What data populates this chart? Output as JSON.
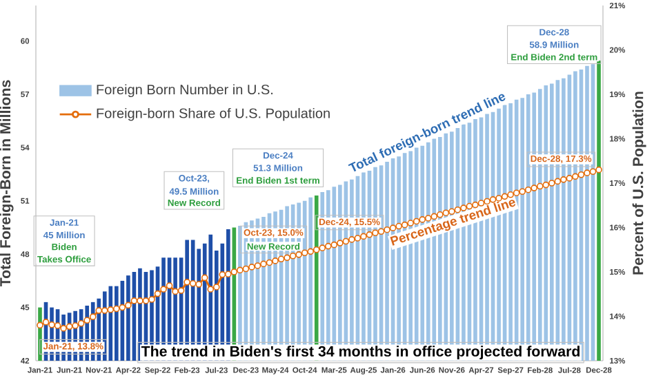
{
  "chart_data": {
    "type": "bar",
    "ylabel": "Total Foreign-Born in Millions",
    "y2label": "Percent of U.S. Population",
    "categories": [
      "Jan-21",
      null,
      null,
      null,
      null,
      "Jun-21",
      null,
      null,
      null,
      null,
      "Nov-21",
      null,
      null,
      null,
      null,
      "Apr-22",
      null,
      null,
      null,
      null,
      "Sep-22",
      null,
      null,
      null,
      null,
      "Feb-23",
      null,
      null,
      null,
      null,
      "Jul-23",
      null,
      null,
      null,
      null,
      "Dec-23",
      null,
      null,
      null,
      null,
      "May-24",
      null,
      null,
      null,
      null,
      "Oct-24",
      null,
      null,
      null,
      null,
      "Mar-25",
      null,
      null,
      null,
      null,
      "Aug-25",
      null,
      null,
      null,
      null,
      "Jan-26",
      null,
      null,
      null,
      null,
      "Jun-26",
      null,
      null,
      null,
      null,
      "Nov-26",
      null,
      null,
      null,
      null,
      "Apr-27",
      null,
      null,
      null,
      null,
      "Sep-27",
      null,
      null,
      null,
      null,
      "Feb-28",
      null,
      null,
      null,
      null,
      "Jul-28",
      null,
      null,
      null,
      null,
      "Dec-28"
    ],
    "series": [
      {
        "name": "Foreign Born Number in U.S.",
        "color": "#9dc3e6",
        "colors": [
          "#3aa845",
          "#1f4fa8",
          "#1f4fa8",
          "#1f4fa8",
          "#1f4fa8",
          "#1f4fa8",
          "#1f4fa8",
          "#1f4fa8",
          "#1f4fa8",
          "#1f4fa8",
          "#1f4fa8",
          "#1f4fa8",
          "#1f4fa8",
          "#1f4fa8",
          "#1f4fa8",
          "#1f4fa8",
          "#1f4fa8",
          "#1f4fa8",
          "#1f4fa8",
          "#1f4fa8",
          "#1f4fa8",
          "#1f4fa8",
          "#1f4fa8",
          "#1f4fa8",
          "#1f4fa8",
          "#1f4fa8",
          "#1f4fa8",
          "#1f4fa8",
          "#1f4fa8",
          "#1f4fa8",
          "#1f4fa8",
          "#1f4fa8",
          "#1f4fa8",
          "#3aa845",
          "#9dc3e6",
          "#9dc3e6",
          "#9dc3e6",
          "#9dc3e6",
          "#9dc3e6",
          "#9dc3e6",
          "#9dc3e6",
          "#9dc3e6",
          "#9dc3e6",
          "#9dc3e6",
          "#9dc3e6",
          "#9dc3e6",
          "#9dc3e6",
          "#3aa845",
          "#9dc3e6",
          "#9dc3e6",
          "#9dc3e6",
          "#9dc3e6",
          "#9dc3e6",
          "#9dc3e6",
          "#9dc3e6",
          "#9dc3e6",
          "#9dc3e6",
          "#9dc3e6",
          "#9dc3e6",
          "#9dc3e6",
          "#9dc3e6",
          "#9dc3e6",
          "#9dc3e6",
          "#9dc3e6",
          "#9dc3e6",
          "#9dc3e6",
          "#9dc3e6",
          "#9dc3e6",
          "#9dc3e6",
          "#9dc3e6",
          "#9dc3e6",
          "#9dc3e6",
          "#9dc3e6",
          "#9dc3e6",
          "#9dc3e6",
          "#9dc3e6",
          "#9dc3e6",
          "#9dc3e6",
          "#9dc3e6",
          "#9dc3e6",
          "#9dc3e6",
          "#9dc3e6",
          "#9dc3e6",
          "#9dc3e6",
          "#9dc3e6",
          "#9dc3e6",
          "#9dc3e6",
          "#9dc3e6",
          "#9dc3e6",
          "#9dc3e6",
          "#9dc3e6",
          "#9dc3e6",
          "#9dc3e6",
          "#9dc3e6",
          "#9dc3e6",
          "#3aa845"
        ],
        "values": [
          45.0,
          45.3,
          45.0,
          44.9,
          44.6,
          44.7,
          44.8,
          44.9,
          45.1,
          45.3,
          45.5,
          45.9,
          46.2,
          46.2,
          46.5,
          46.8,
          47.0,
          47.2,
          47.0,
          47.1,
          47.3,
          47.8,
          47.8,
          47.8,
          47.8,
          48.8,
          48.8,
          48.3,
          48.6,
          49.1,
          48.2,
          48.6,
          49.4,
          49.5,
          49.6,
          49.8,
          49.9,
          50.0,
          50.1,
          50.3,
          50.4,
          50.5,
          50.7,
          50.8,
          50.9,
          51.0,
          51.2,
          51.3,
          51.5,
          51.6,
          51.8,
          51.9,
          52.1,
          52.2,
          52.4,
          52.6,
          52.7,
          52.9,
          53.0,
          53.2,
          53.4,
          53.5,
          53.7,
          53.8,
          54.0,
          54.1,
          54.3,
          54.5,
          54.6,
          54.8,
          54.9,
          55.1,
          55.3,
          55.4,
          55.6,
          55.7,
          55.9,
          56.0,
          56.2,
          56.4,
          56.5,
          56.7,
          56.8,
          57.0,
          57.1,
          57.3,
          57.5,
          57.6,
          57.8,
          57.9,
          58.1,
          58.3,
          58.4,
          58.6,
          58.7,
          58.9
        ]
      },
      {
        "name": "Foreign-born Share of U.S. Population",
        "type": "line",
        "axis": "y2",
        "color": "#e46c0a",
        "values": [
          13.8,
          13.87,
          13.81,
          13.79,
          13.73,
          13.77,
          13.79,
          13.84,
          13.91,
          13.99,
          14.13,
          14.13,
          14.15,
          14.17,
          14.2,
          14.25,
          14.35,
          14.35,
          14.35,
          14.38,
          14.51,
          14.61,
          14.69,
          14.56,
          14.58,
          14.77,
          14.74,
          14.72,
          14.87,
          14.61,
          14.66,
          14.94,
          14.95,
          15.0,
          15.04,
          15.07,
          15.11,
          15.14,
          15.18,
          15.21,
          15.25,
          15.29,
          15.32,
          15.36,
          15.39,
          15.43,
          15.46,
          15.5,
          15.54,
          15.58,
          15.61,
          15.65,
          15.69,
          15.73,
          15.76,
          15.8,
          15.84,
          15.88,
          15.91,
          15.95,
          15.99,
          16.03,
          16.06,
          16.1,
          16.14,
          16.18,
          16.21,
          16.25,
          16.29,
          16.33,
          16.36,
          16.4,
          16.44,
          16.48,
          16.51,
          16.55,
          16.59,
          16.63,
          16.66,
          16.7,
          16.74,
          16.78,
          16.81,
          16.85,
          16.89,
          16.93,
          16.96,
          17.0,
          17.04,
          17.08,
          17.11,
          17.15,
          17.19,
          17.23,
          17.26,
          17.3
        ]
      }
    ],
    "ylim": [
      42,
      62
    ],
    "yticks": [
      42,
      45,
      48,
      51,
      54,
      57,
      60
    ],
    "y2lim": [
      13,
      21
    ],
    "y2ticks": [
      {
        "value": 13,
        "label": "13%"
      },
      {
        "value": 14,
        "label": "14%"
      },
      {
        "value": 15,
        "label": "15%"
      },
      {
        "value": 16,
        "label": "16%"
      },
      {
        "value": 17,
        "label": "17%"
      },
      {
        "value": 18,
        "label": "18%"
      },
      {
        "value": 19,
        "label": "19%"
      },
      {
        "value": 20,
        "label": "20%"
      },
      {
        "value": 21,
        "label": "21%"
      }
    ],
    "legend": "top left",
    "marker": "circle",
    "annotations": [
      "Jan-21",
      "45 Million",
      "Biden",
      "Takes Office",
      "Oct-23,",
      "49.5 Million",
      "New Record",
      "Dec-24",
      "51.3 Million",
      "End Biden 1st term",
      "Dec-28",
      "58.9 Million",
      "End Biden 2nd term",
      "Jan-21, 13.8%",
      "Oct-23, 15.0%",
      "New Record",
      "Dec-24, 15.5%",
      "Dec-28, 17.3%",
      "Total foreign-born trend line",
      "Percentage trend line",
      "The trend in Biden's first 34 months in office projected forward"
    ]
  }
}
